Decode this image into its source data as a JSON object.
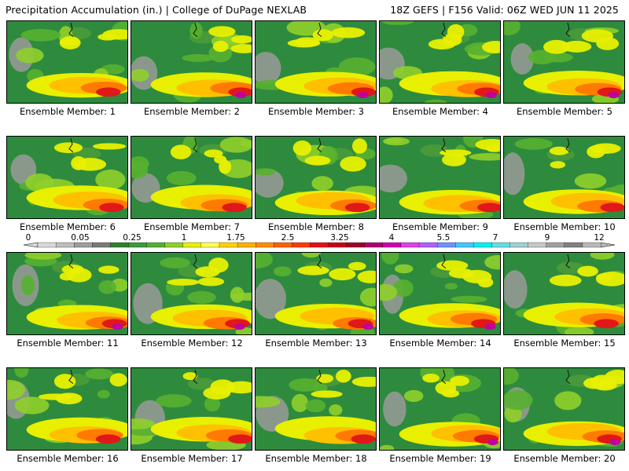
{
  "header": {
    "left": "Precipitation Accumulation (in.) | College of DuPage NEXLAB",
    "right": "18Z GEFS | F156 Valid: 06Z WED JUN 11 2025"
  },
  "members": [
    "Ensemble Member: 1",
    "Ensemble Member: 2",
    "Ensemble Member: 3",
    "Ensemble Member: 4",
    "Ensemble Member: 5",
    "Ensemble Member: 6",
    "Ensemble Member: 7",
    "Ensemble Member: 8",
    "Ensemble Member: 9",
    "Ensemble Member: 10",
    "Ensemble Member: 11",
    "Ensemble Member: 12",
    "Ensemble Member: 13",
    "Ensemble Member: 14",
    "Ensemble Member: 15",
    "Ensemble Member: 16",
    "Ensemble Member: 17",
    "Ensemble Member: 18",
    "Ensemble Member: 19",
    "Ensemble Member: 20"
  ],
  "legend": {
    "labels": [
      "0",
      "0.05",
      "0.25",
      "1",
      "1.75",
      "2.5",
      "3.25",
      "4",
      "5.5",
      "7",
      "9",
      "12"
    ],
    "colors": [
      "#d9d9d9",
      "#bdbdbd",
      "#9e9e9e",
      "#7a7a7a",
      "#2f7f2f",
      "#3a9a3a",
      "#54b030",
      "#8fcf2a",
      "#e8f000",
      "#ffff55",
      "#ffd200",
      "#ffb000",
      "#ff8c00",
      "#ff6000",
      "#ff3a00",
      "#e81010",
      "#c80018",
      "#a00028",
      "#b00070",
      "#d000b0",
      "#e040e8",
      "#b060ff",
      "#7090ff",
      "#40c8ff",
      "#00f0f0",
      "#60e0e0",
      "#a0d0d0",
      "#c8c8c8",
      "#a0a0a0",
      "#808080",
      "#b8b8b8"
    ]
  }
}
